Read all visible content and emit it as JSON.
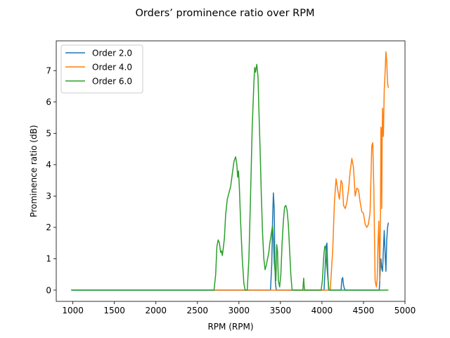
{
  "chart_data": {
    "type": "line",
    "title": "Orders’ prominence ratio over RPM",
    "xlabel": "RPM (RPM)",
    "ylabel": "Prominence ratio (dB)",
    "xlim": [
      800,
      5000
    ],
    "ylim": [
      -0.36,
      7.95
    ],
    "xticks": [
      1000,
      1500,
      2000,
      2500,
      3000,
      3500,
      4000,
      4500,
      5000
    ],
    "yticks": [
      0,
      1,
      2,
      3,
      4,
      5,
      6,
      7
    ],
    "grid": false,
    "legend_position": "upper-left",
    "series": [
      {
        "name": "Order 2.0",
        "color": "#1f77b4",
        "points": [
          [
            980,
            0
          ],
          [
            3380,
            0
          ],
          [
            3395,
            0.8
          ],
          [
            3405,
            2.2
          ],
          [
            3415,
            3.1
          ],
          [
            3425,
            2.6
          ],
          [
            3432,
            1.0
          ],
          [
            3440,
            0.2
          ],
          [
            3450,
            0
          ],
          [
            4025,
            0
          ],
          [
            4040,
            0.8
          ],
          [
            4050,
            1.4
          ],
          [
            4060,
            1.5
          ],
          [
            4070,
            0.6
          ],
          [
            4080,
            0
          ],
          [
            4230,
            0
          ],
          [
            4240,
            0.35
          ],
          [
            4250,
            0.4
          ],
          [
            4260,
            0.15
          ],
          [
            4270,
            0.05
          ],
          [
            4280,
            0
          ],
          [
            4690,
            0
          ],
          [
            4700,
            0.5
          ],
          [
            4710,
            1.0
          ],
          [
            4720,
            0.7
          ],
          [
            4730,
            0.6
          ],
          [
            4740,
            1.3
          ],
          [
            4750,
            1.9
          ],
          [
            4760,
            1.2
          ],
          [
            4770,
            0.6
          ],
          [
            4780,
            1.6
          ],
          [
            4790,
            2.0
          ],
          [
            4800,
            2.15
          ]
        ]
      },
      {
        "name": "Order 4.0",
        "color": "#ff7f0e",
        "points": [
          [
            2700,
            0
          ],
          [
            4100,
            0
          ],
          [
            4130,
            1.3
          ],
          [
            4150,
            2.8
          ],
          [
            4170,
            3.55
          ],
          [
            4190,
            3.2
          ],
          [
            4210,
            2.9
          ],
          [
            4230,
            3.5
          ],
          [
            4245,
            3.4
          ],
          [
            4260,
            2.7
          ],
          [
            4280,
            2.6
          ],
          [
            4300,
            2.8
          ],
          [
            4320,
            3.2
          ],
          [
            4340,
            3.8
          ],
          [
            4360,
            4.2
          ],
          [
            4380,
            3.9
          ],
          [
            4400,
            3.0
          ],
          [
            4420,
            3.25
          ],
          [
            4440,
            3.2
          ],
          [
            4460,
            2.8
          ],
          [
            4480,
            2.5
          ],
          [
            4500,
            2.45
          ],
          [
            4520,
            2.1
          ],
          [
            4540,
            2.0
          ],
          [
            4560,
            2.1
          ],
          [
            4580,
            2.5
          ],
          [
            4600,
            4.6
          ],
          [
            4612,
            4.7
          ],
          [
            4625,
            3.2
          ],
          [
            4640,
            0.3
          ],
          [
            4655,
            0.1
          ],
          [
            4665,
            0.35
          ],
          [
            4675,
            1.5
          ],
          [
            4685,
            2.2
          ],
          [
            4695,
            0.3
          ],
          [
            4705,
            2.5
          ],
          [
            4710,
            5.2
          ],
          [
            4715,
            5.1
          ],
          [
            4720,
            2.6
          ],
          [
            4725,
            4.8
          ],
          [
            4730,
            5.8
          ],
          [
            4740,
            4.9
          ],
          [
            4750,
            6.4
          ],
          [
            4760,
            6.9
          ],
          [
            4770,
            7.6
          ],
          [
            4780,
            7.3
          ],
          [
            4790,
            6.6
          ],
          [
            4800,
            6.45
          ]
        ]
      },
      {
        "name": "Order 6.0",
        "color": "#2ca02c",
        "points": [
          [
            980,
            0
          ],
          [
            2700,
            0
          ],
          [
            2720,
            0.5
          ],
          [
            2735,
            1.4
          ],
          [
            2750,
            1.6
          ],
          [
            2765,
            1.5
          ],
          [
            2780,
            1.2
          ],
          [
            2790,
            1.25
          ],
          [
            2800,
            1.1
          ],
          [
            2810,
            1.3
          ],
          [
            2825,
            1.65
          ],
          [
            2840,
            2.4
          ],
          [
            2860,
            2.9
          ],
          [
            2880,
            3.1
          ],
          [
            2900,
            3.3
          ],
          [
            2920,
            3.7
          ],
          [
            2940,
            4.1
          ],
          [
            2960,
            4.25
          ],
          [
            2975,
            4.0
          ],
          [
            2985,
            3.6
          ],
          [
            2995,
            3.8
          ],
          [
            3005,
            3.3
          ],
          [
            3020,
            2.2
          ],
          [
            3040,
            1.0
          ],
          [
            3060,
            0.2
          ],
          [
            3075,
            0
          ],
          [
            3100,
            0
          ],
          [
            3120,
            1.0
          ],
          [
            3140,
            3.0
          ],
          [
            3160,
            5.2
          ],
          [
            3180,
            6.6
          ],
          [
            3190,
            7.1
          ],
          [
            3200,
            6.95
          ],
          [
            3215,
            7.2
          ],
          [
            3230,
            6.8
          ],
          [
            3240,
            5.8
          ],
          [
            3255,
            4.5
          ],
          [
            3270,
            3.0
          ],
          [
            3285,
            1.8
          ],
          [
            3300,
            1.0
          ],
          [
            3315,
            0.65
          ],
          [
            3330,
            0.8
          ],
          [
            3345,
            1.0
          ],
          [
            3360,
            1.2
          ],
          [
            3372,
            1.5
          ],
          [
            3385,
            1.7
          ],
          [
            3395,
            1.9
          ],
          [
            3405,
            2.05
          ],
          [
            3415,
            1.6
          ],
          [
            3425,
            0.9
          ],
          [
            3435,
            0.6
          ],
          [
            3445,
            0.3
          ],
          [
            3455,
            1.45
          ],
          [
            3465,
            1.25
          ],
          [
            3475,
            0.3
          ],
          [
            3490,
            0.1
          ],
          [
            3505,
            0.5
          ],
          [
            3520,
            1.5
          ],
          [
            3535,
            2.2
          ],
          [
            3550,
            2.65
          ],
          [
            3565,
            2.7
          ],
          [
            3580,
            2.55
          ],
          [
            3595,
            2.1
          ],
          [
            3610,
            1.3
          ],
          [
            3625,
            0.5
          ],
          [
            3640,
            0
          ],
          [
            3770,
            0
          ],
          [
            3775,
            0.2
          ],
          [
            3780,
            0.38
          ],
          [
            3785,
            0.15
          ],
          [
            3790,
            0
          ],
          [
            3990,
            0
          ],
          [
            4005,
            0.3
          ],
          [
            4015,
            0.8
          ],
          [
            4025,
            1.2
          ],
          [
            4035,
            1.4
          ],
          [
            4045,
            1.35
          ],
          [
            4055,
            0.9
          ],
          [
            4070,
            0.4
          ],
          [
            4085,
            0
          ],
          [
            4800,
            0
          ]
        ]
      }
    ]
  }
}
